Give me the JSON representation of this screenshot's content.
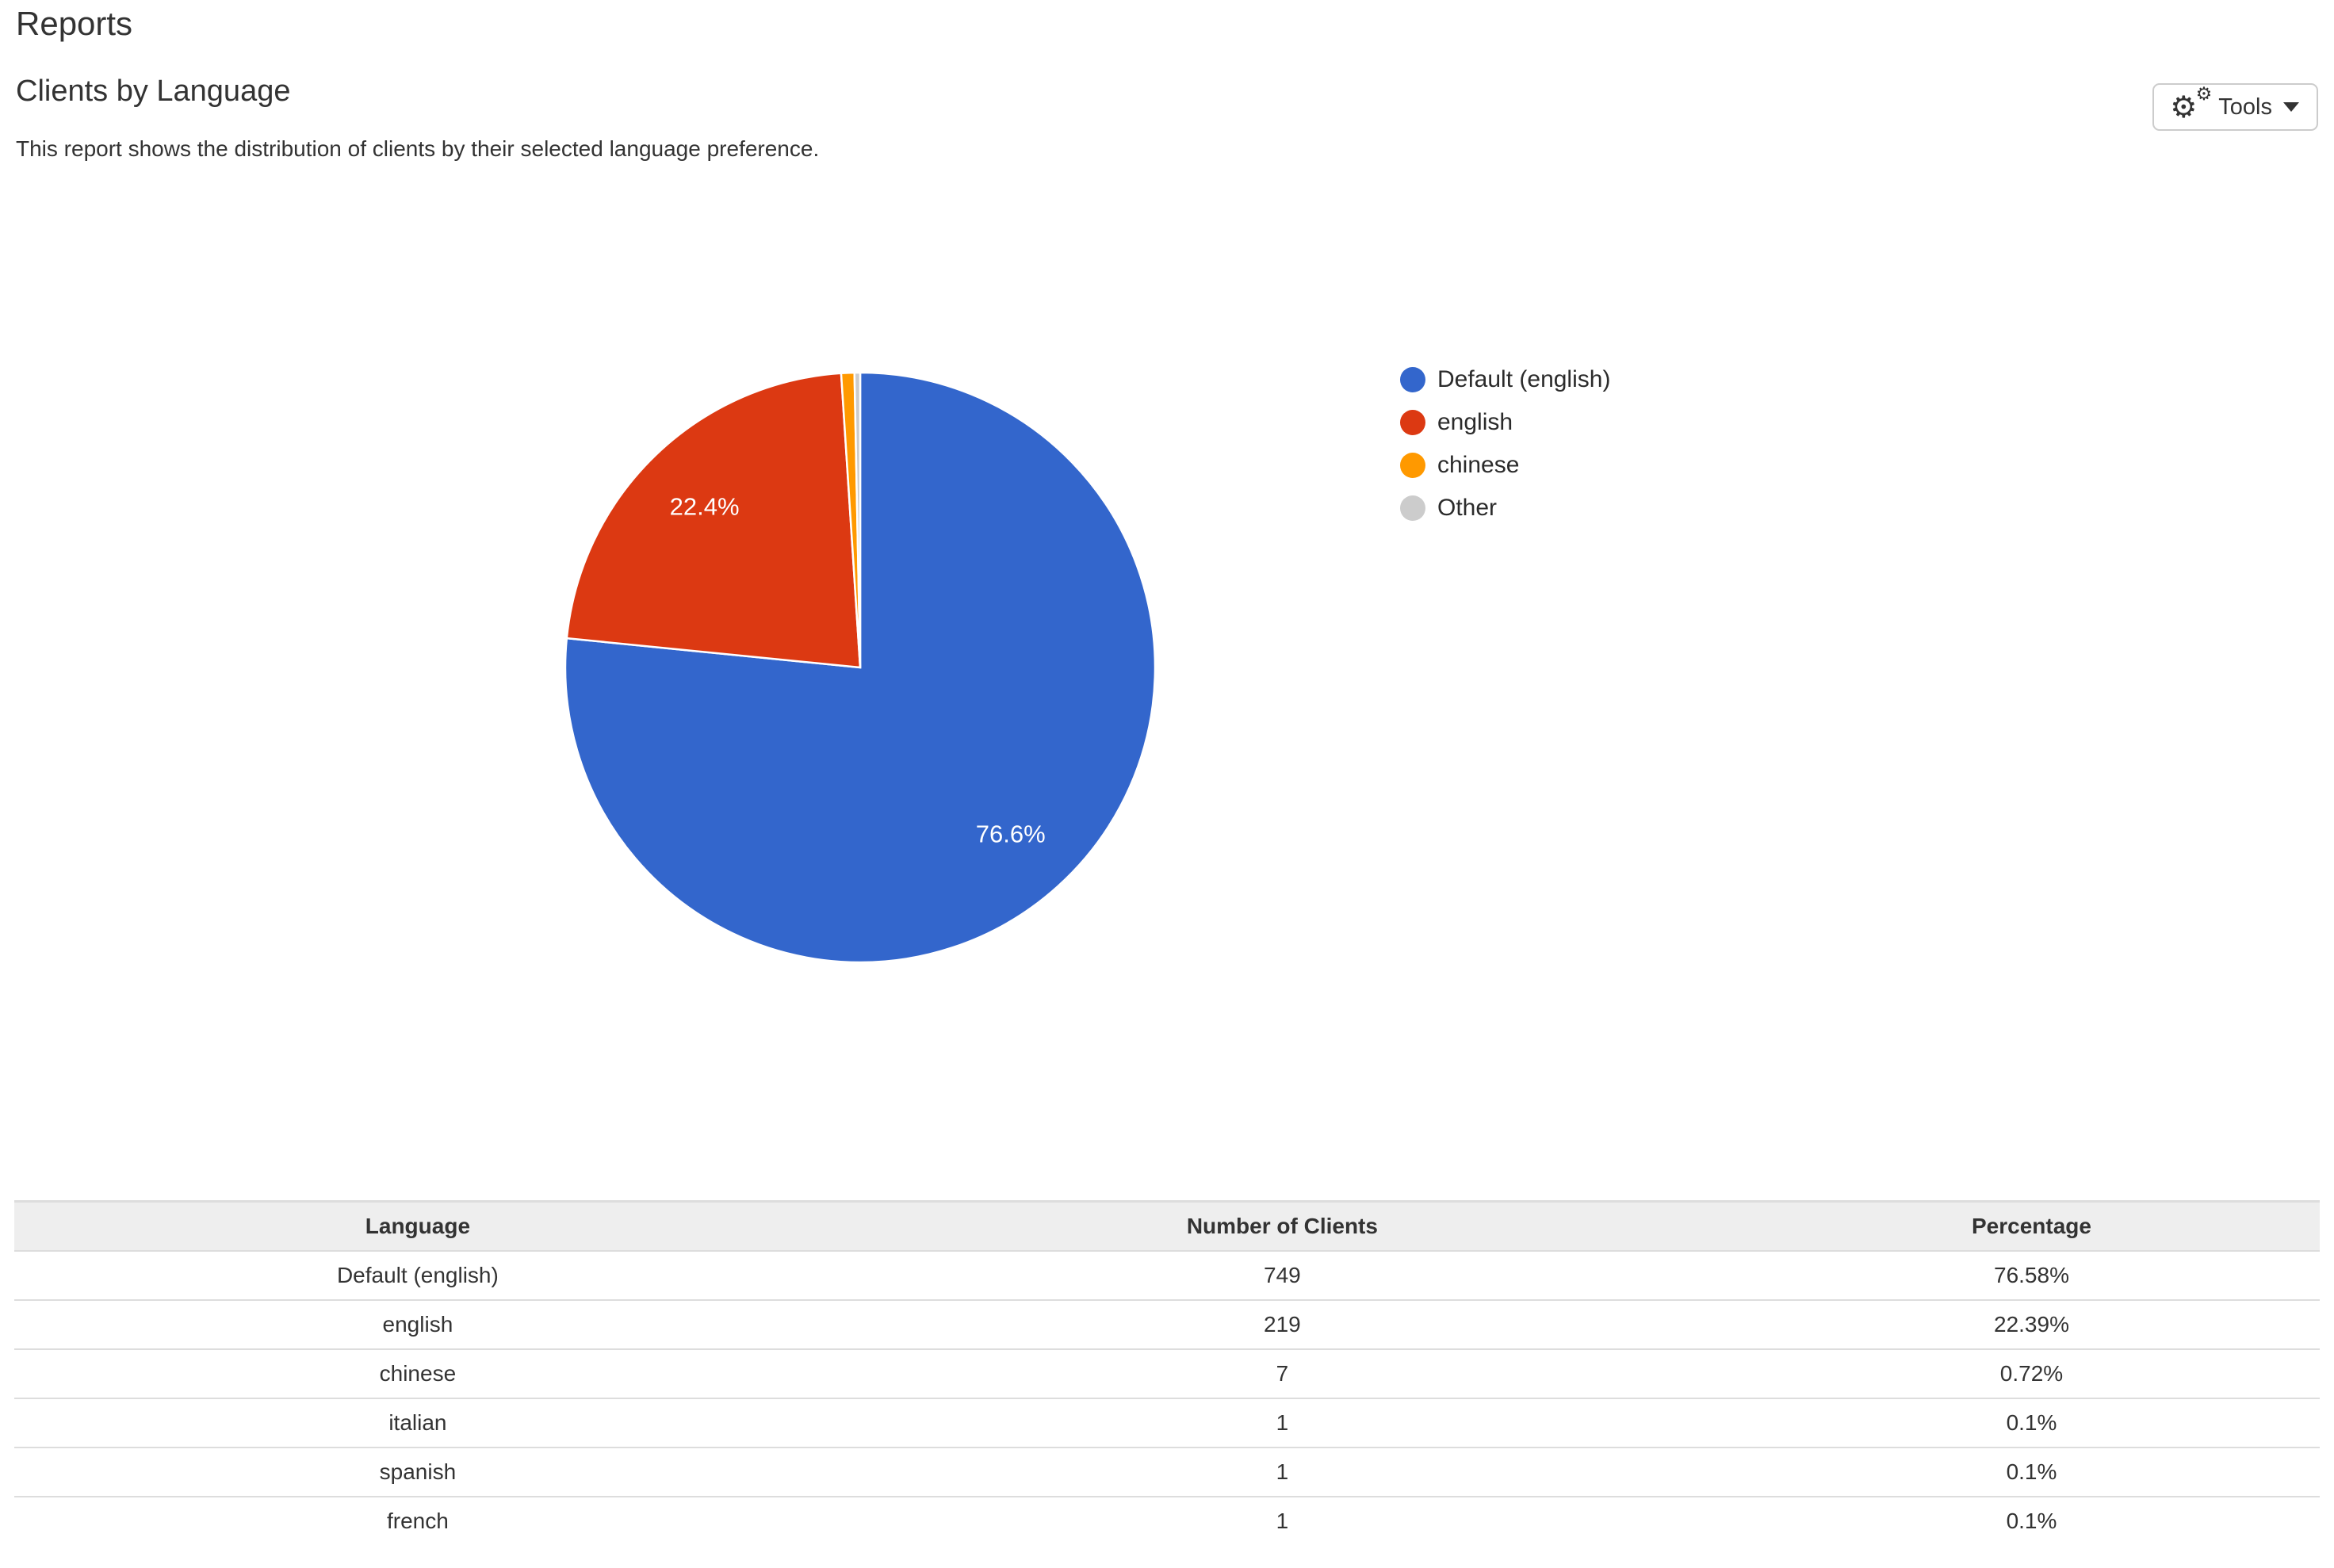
{
  "page": {
    "title": "Reports"
  },
  "report": {
    "title": "Clients by Language",
    "description": "This report shows the distribution of clients by their selected language preference.",
    "tools_label": "Tools"
  },
  "chart_data": {
    "type": "pie",
    "title": "Clients by Language",
    "legend_position": "right",
    "slices": [
      {
        "label": "Default (english)",
        "value": 749,
        "percent": 76.58,
        "display_percent": "76.6%",
        "color": "#3366CC"
      },
      {
        "label": "english",
        "value": 219,
        "percent": 22.39,
        "display_percent": "22.4%",
        "color": "#DC3912"
      },
      {
        "label": "chinese",
        "value": 7,
        "percent": 0.72,
        "display_percent": "",
        "color": "#FF9900"
      },
      {
        "label": "Other",
        "percent": 0.31,
        "display_percent": "",
        "color": "#CCCCCC"
      }
    ]
  },
  "table": {
    "headers": [
      "Language",
      "Number of Clients",
      "Percentage"
    ],
    "rows": [
      [
        "Default (english)",
        "749",
        "76.58%"
      ],
      [
        "english",
        "219",
        "22.39%"
      ],
      [
        "chinese",
        "7",
        "0.72%"
      ],
      [
        "italian",
        "1",
        "0.1%"
      ],
      [
        "spanish",
        "1",
        "0.1%"
      ],
      [
        "french",
        "1",
        "0.1%"
      ]
    ]
  }
}
